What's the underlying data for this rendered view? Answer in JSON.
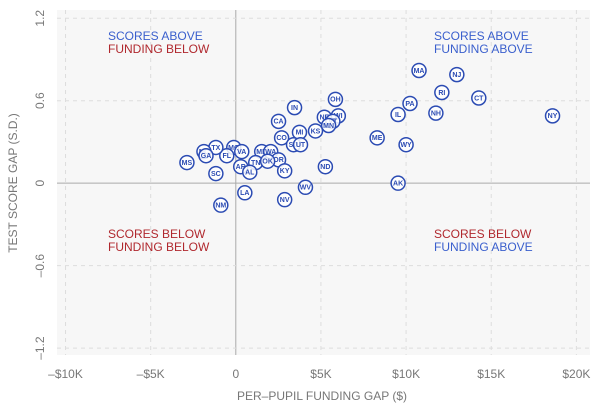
{
  "chart_data": {
    "type": "scatter",
    "x_label": "PER–PUPIL FUNDING GAP ($)",
    "y_label": "TEST SCORE GAP (S.D.)",
    "xlim": [
      -10500,
      20800
    ],
    "ylim": [
      -1.25,
      1.26
    ],
    "xticks": [
      {
        "value": -10000,
        "label": "–$10K"
      },
      {
        "value": -5000,
        "label": "–$5K"
      },
      0,
      {
        "value": 5000,
        "label": "$5K"
      },
      {
        "value": 10000,
        "label": "$10K"
      },
      {
        "value": 15000,
        "label": "$15K"
      },
      {
        "value": 20000,
        "label": "$20K"
      }
    ],
    "yticks": [
      {
        "value": -1.2,
        "label": "–1.2"
      },
      {
        "value": -0.6,
        "label": "–0.6"
      },
      0,
      0.6,
      1.2
    ],
    "grid": true,
    "color": "#2b4bb3",
    "labels": [
      "MA",
      "NJ",
      "RI",
      "CT",
      "PA",
      "NY",
      "NH",
      "IL",
      "WY",
      "ME",
      "AK",
      "OH",
      "IN",
      "WI",
      "NE",
      "VT",
      "MN",
      "KS",
      "MI",
      "CA",
      "CO",
      "SD",
      "UT",
      "MD",
      "WA",
      "OR",
      "TN",
      "OK",
      "KY",
      "ND",
      "WV",
      "NV",
      "AR",
      "AL",
      "LA",
      "MO",
      "FL",
      "TX",
      "NC",
      "GA",
      "VA",
      "MS",
      "SC",
      "NM"
    ],
    "x": [
      10760,
      12980,
      12100,
      14270,
      10230,
      18600,
      11750,
      9530,
      10000,
      8300,
      9530,
      5850,
      3450,
      6020,
      5200,
      5700,
      5450,
      4680,
      3740,
      2510,
      2690,
      3390,
      3800,
      1520,
      2050,
      2510,
      1170,
      1870,
      2870,
      5260,
      4090,
      2870,
      290,
      820,
      530,
      -120,
      -530,
      -1170,
      -1870,
      -1750,
      350,
      -2870,
      -1170,
      -880
    ],
    "y": [
      0.82,
      0.79,
      0.66,
      0.62,
      0.58,
      0.49,
      0.51,
      0.5,
      0.28,
      0.33,
      0.0,
      0.61,
      0.55,
      0.49,
      0.48,
      0.45,
      0.42,
      0.38,
      0.37,
      0.45,
      0.33,
      0.28,
      0.28,
      0.23,
      0.23,
      0.17,
      0.15,
      0.16,
      0.09,
      0.12,
      -0.03,
      -0.12,
      0.12,
      0.08,
      -0.07,
      0.26,
      0.2,
      0.26,
      0.23,
      0.2,
      0.23,
      0.15,
      0.07,
      -0.16
    ],
    "annotations": [
      {
        "quadrant": "top-left",
        "lines": [
          {
            "text": "SCORES ABOVE",
            "color": "#3a5fcd"
          },
          {
            "text": "FUNDING BELOW",
            "color": "#b0282e"
          }
        ]
      },
      {
        "quadrant": "top-right",
        "lines": [
          {
            "text": "SCORES ABOVE",
            "color": "#3a5fcd"
          },
          {
            "text": "FUNDING ABOVE",
            "color": "#3a5fcd"
          }
        ]
      },
      {
        "quadrant": "bottom-left",
        "lines": [
          {
            "text": "SCORES BELOW",
            "color": "#b0282e"
          },
          {
            "text": "FUNDING BELOW",
            "color": "#b0282e"
          }
        ]
      },
      {
        "quadrant": "bottom-right",
        "lines": [
          {
            "text": "SCORES BELOW",
            "color": "#b0282e"
          },
          {
            "text": "FUNDING ABOVE",
            "color": "#3a5fcd"
          }
        ]
      }
    ]
  }
}
